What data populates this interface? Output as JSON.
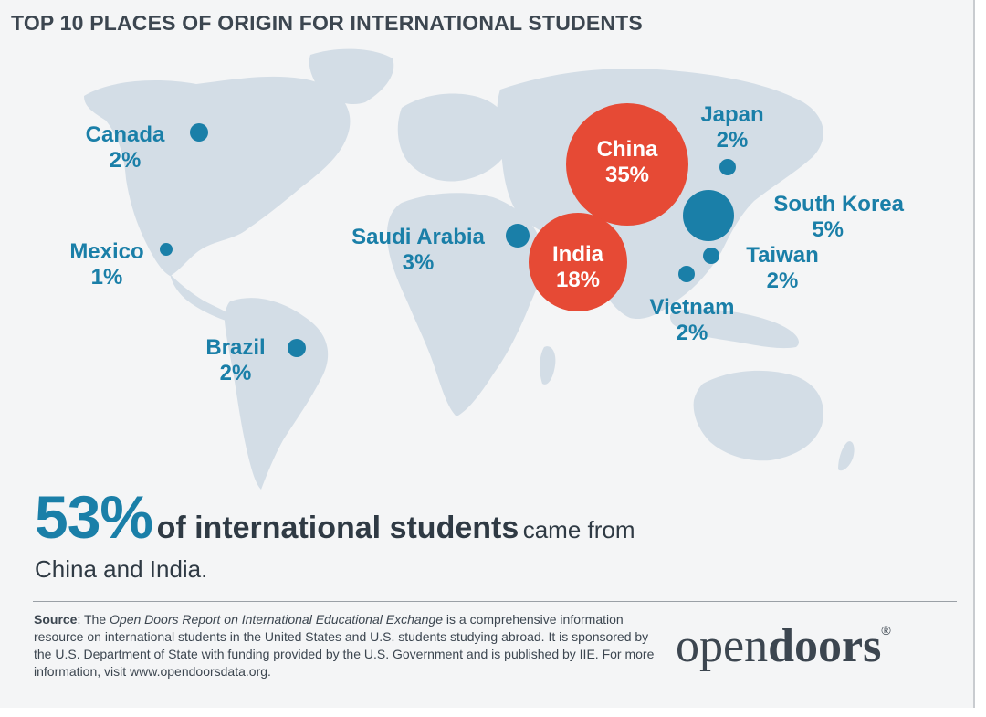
{
  "title": "TOP 10 PLACES OF ORIGIN FOR INTERNATIONAL STUDENTS",
  "colors": {
    "accent_blue": "#1a7fa8",
    "accent_red": "#e64a35",
    "land": "#d3dde6",
    "text_dark": "#2f3a44"
  },
  "countries": [
    {
      "name": "China",
      "pct": "35%",
      "value": 35
    },
    {
      "name": "India",
      "pct": "18%",
      "value": 18
    },
    {
      "name": "South Korea",
      "pct": "5%",
      "value": 5
    },
    {
      "name": "Saudi Arabia",
      "pct": "3%",
      "value": 3
    },
    {
      "name": "Canada",
      "pct": "2%",
      "value": 2
    },
    {
      "name": "Japan",
      "pct": "2%",
      "value": 2
    },
    {
      "name": "Taiwan",
      "pct": "2%",
      "value": 2
    },
    {
      "name": "Vietnam",
      "pct": "2%",
      "value": 2
    },
    {
      "name": "Brazil",
      "pct": "2%",
      "value": 2
    },
    {
      "name": "Mexico",
      "pct": "1%",
      "value": 1
    }
  ],
  "headline": {
    "big": "53%",
    "bold": "of international students",
    "light": "came from",
    "line2": "China and India."
  },
  "source": {
    "label": "Source",
    "intro": ": The ",
    "report_title": "Open Doors Report on International Educational Exchange",
    "body": " is a comprehensive information resource on international students in the United States and U.S. students studying abroad. It is sponsored by the U.S. Department of State with funding provided by the U.S. Government and is published by IIE. For more information, visit www.opendoorsdata.org."
  },
  "logo": {
    "light": "open",
    "bold": "doors",
    "mark": "®"
  }
}
